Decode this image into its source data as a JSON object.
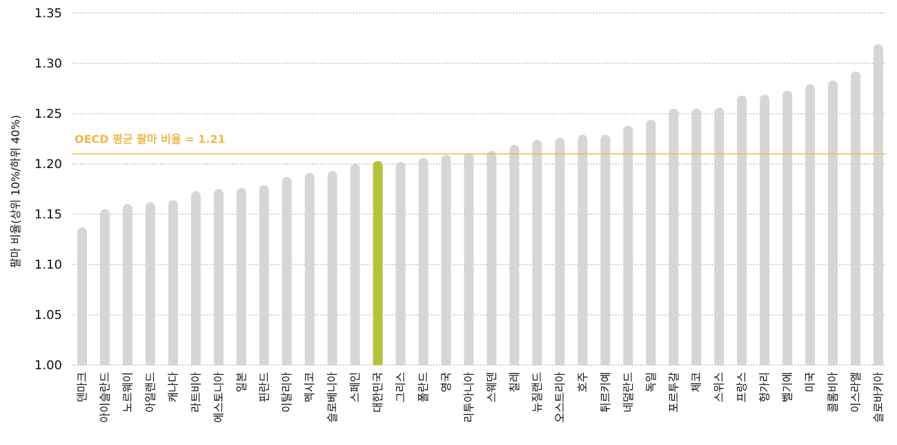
{
  "chart_data": {
    "type": "bar",
    "ylabel": "팔마 비율(상위 10%/하위 40%)",
    "ylim": [
      1.0,
      1.35
    ],
    "yticks": [
      "1.00",
      "1.05",
      "1.10",
      "1.15",
      "1.20",
      "1.25",
      "1.30",
      "1.35"
    ],
    "grid": "horizontal-dotted",
    "categories": [
      "덴마크",
      "아이슬란드",
      "노르웨이",
      "아일랜드",
      "캐나다",
      "라트비아",
      "에스토니아",
      "일본",
      "핀란드",
      "이탈리아",
      "멕시코",
      "슬로베니아",
      "스페인",
      "대한민국",
      "그리스",
      "폴란드",
      "영국",
      "리투아니아",
      "스웨덴",
      "칠레",
      "뉴질랜드",
      "오스트리아",
      "호주",
      "튀르키예",
      "네덜란드",
      "독일",
      "포르투갈",
      "체코",
      "스위스",
      "프랑스",
      "헝가리",
      "벨기에",
      "미국",
      "콜롬비아",
      "이스라엘",
      "슬로바키아"
    ],
    "values": [
      1.137,
      1.155,
      1.16,
      1.162,
      1.164,
      1.173,
      1.175,
      1.176,
      1.179,
      1.187,
      1.191,
      1.193,
      1.2,
      1.203,
      1.202,
      1.206,
      1.209,
      1.211,
      1.213,
      1.219,
      1.224,
      1.226,
      1.229,
      1.229,
      1.238,
      1.244,
      1.255,
      1.255,
      1.256,
      1.268,
      1.269,
      1.273,
      1.279,
      1.283,
      1.292,
      1.319
    ],
    "highlight_category": "대한민국",
    "reference_line": {
      "label": "OECD 평균 팔마 비율 = 1.21",
      "value": 1.21
    },
    "colors": {
      "bar": "#d6d6d6",
      "highlight": "#b5c33a",
      "reference": "#f0b74a",
      "grid": "#888888"
    }
  }
}
